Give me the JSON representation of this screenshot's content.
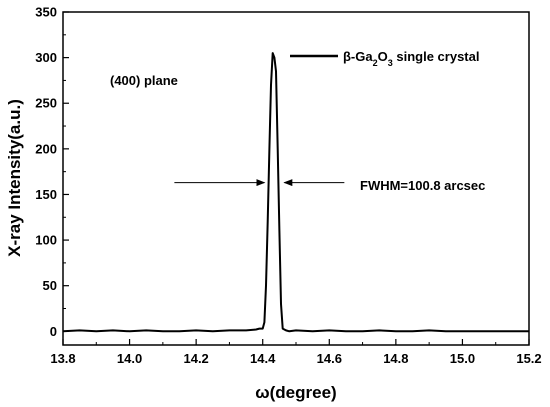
{
  "chart_data": {
    "type": "line",
    "title": "",
    "xlabel": "ω(degree)",
    "ylabel": "X-ray Intensity(a.u.)",
    "xlim": [
      13.8,
      15.2
    ],
    "ylim": [
      -15,
      350
    ],
    "x_ticks": [
      "13.8",
      "14.0",
      "14.2",
      "14.4",
      "14.6",
      "14.8",
      "15.0",
      "15.2"
    ],
    "y_ticks": [
      "0",
      "50",
      "100",
      "150",
      "200",
      "250",
      "300",
      "350"
    ],
    "grid": false,
    "series": [
      {
        "name": "β-Ga2O3 single crystal",
        "color": "#000000",
        "x": [
          13.8,
          13.85,
          13.9,
          13.95,
          14.0,
          14.05,
          14.1,
          14.15,
          14.2,
          14.25,
          14.3,
          14.35,
          14.38,
          14.39,
          14.4,
          14.405,
          14.41,
          14.415,
          14.42,
          14.425,
          14.43,
          14.435,
          14.44,
          14.445,
          14.45,
          14.455,
          14.46,
          14.47,
          14.48,
          14.5,
          14.55,
          14.6,
          14.65,
          14.7,
          14.75,
          14.8,
          14.85,
          14.9,
          14.95,
          15.0,
          15.05,
          15.1,
          15.15,
          15.2
        ],
        "y": [
          0,
          1,
          0,
          1,
          0,
          1,
          0,
          0,
          1,
          0,
          1,
          1,
          2,
          3,
          3,
          10,
          50,
          120,
          200,
          270,
          305,
          300,
          285,
          200,
          110,
          30,
          3,
          1,
          0,
          1,
          0,
          1,
          0,
          0,
          1,
          0,
          0,
          1,
          0,
          0,
          0,
          0,
          0,
          0
        ]
      }
    ],
    "legend": {
      "label_prefix": "β-Ga",
      "sub1": "2",
      "label_mid": "O",
      "sub2": "3",
      "label_suffix": " single crystal",
      "placement": "top-right"
    },
    "annotations": {
      "plane": "(400) plane",
      "fwhm": "FWHM=100.8 arcsec",
      "fwhm_left_x": 14.405,
      "fwhm_right_x": 14.465,
      "fwhm_y": 163
    }
  }
}
